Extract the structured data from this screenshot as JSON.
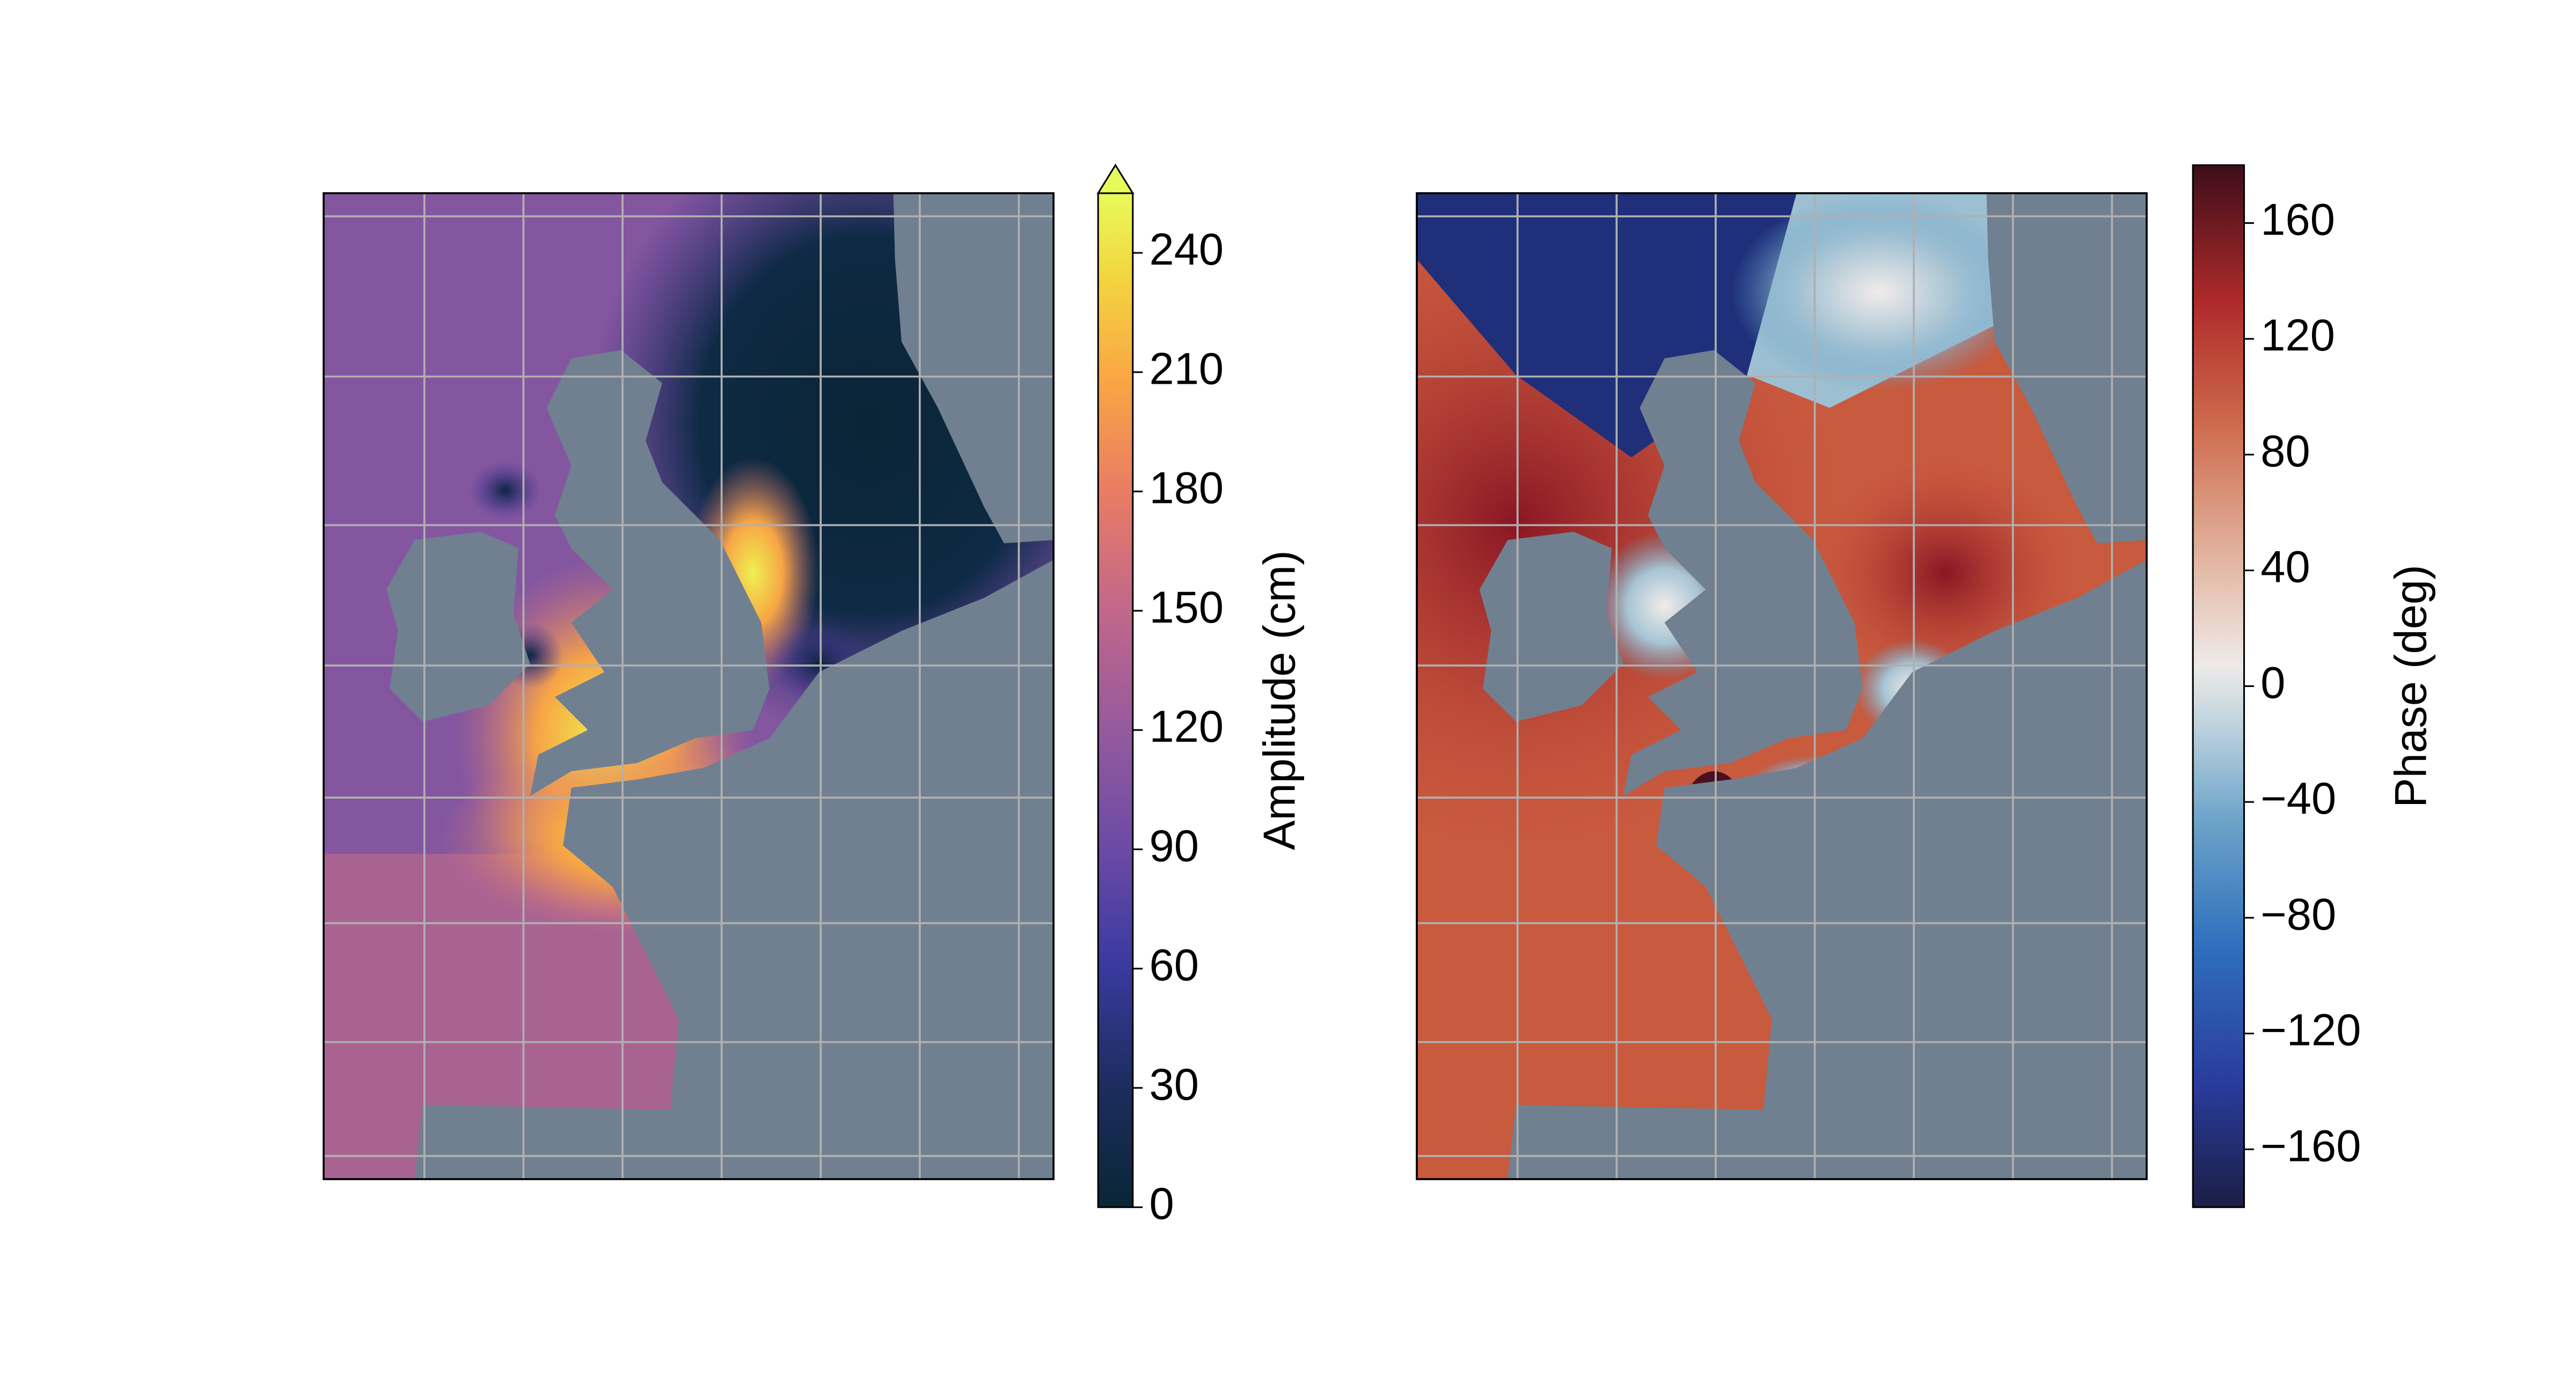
{
  "panels": [
    {
      "colorbar": {
        "label": "Amplitude (cm)",
        "range": [
          0,
          255
        ],
        "extend": "max",
        "ticks": [
          0,
          30,
          60,
          90,
          120,
          150,
          180,
          210,
          240
        ]
      }
    },
    {
      "colorbar": {
        "label": "Phase (deg)",
        "range": [
          -180,
          180
        ],
        "ticks": [
          {
            "value": -160,
            "label": "−160"
          },
          {
            "value": -120,
            "label": "−120"
          },
          {
            "value": -80,
            "label": "−80"
          },
          {
            "value": -40,
            "label": "−40"
          },
          0,
          40,
          80,
          120,
          160
        ]
      }
    }
  ]
}
